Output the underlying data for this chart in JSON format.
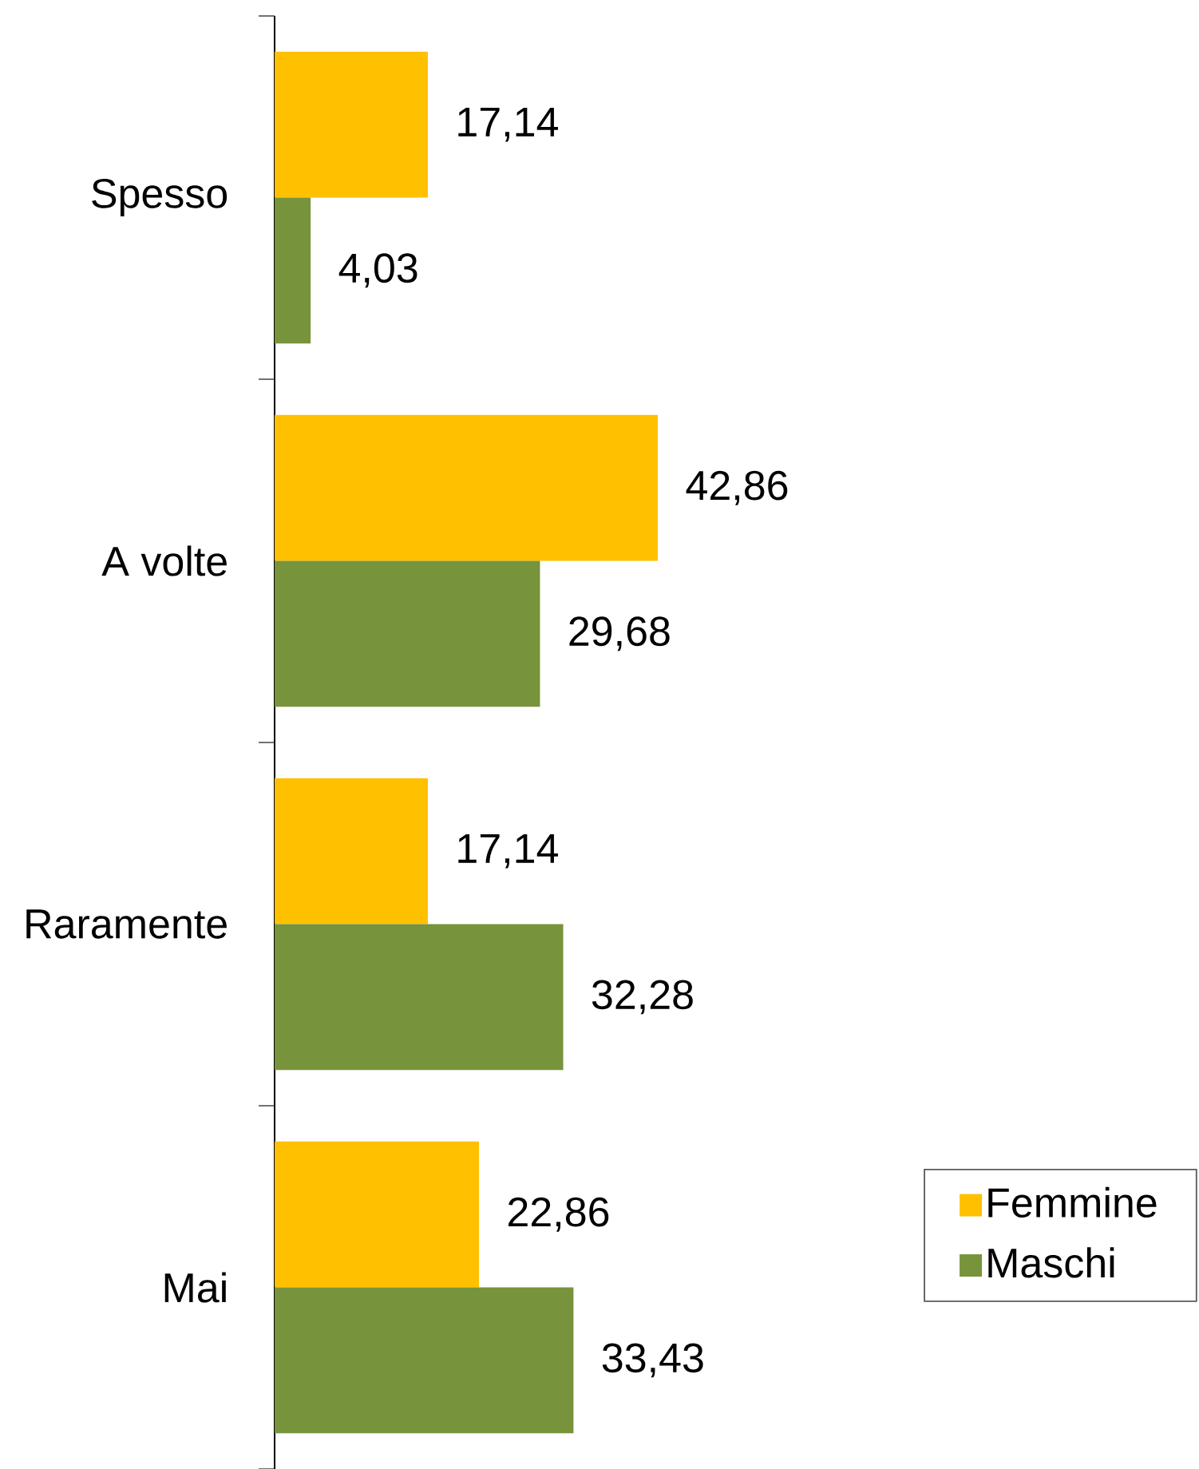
{
  "chart_data": {
    "type": "bar",
    "orientation": "horizontal",
    "categories": [
      "Spesso",
      "A volte",
      "Raramente",
      "Mai"
    ],
    "series": [
      {
        "name": "Femmine",
        "color": "#ffc000",
        "values": [
          17.14,
          42.86,
          17.14,
          22.86
        ],
        "value_labels": [
          "17,14",
          "42,86",
          "17,14",
          "22,86"
        ]
      },
      {
        "name": "Maschi",
        "color": "#77933c",
        "values": [
          4.03,
          29.68,
          32.28,
          33.43
        ],
        "value_labels": [
          "4,03",
          "29,68",
          "32,28",
          "33,43"
        ]
      }
    ],
    "legend": "bottom right",
    "tick_labels": "y"
  }
}
